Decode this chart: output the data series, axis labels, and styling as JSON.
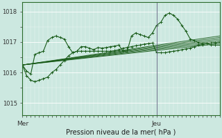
{
  "xlabel": "Pression niveau de la mer( hPa )",
  "bg_color": "#cce8e0",
  "grid_color": "#b8d8d0",
  "line_color": "#1a5c1a",
  "ylim": [
    1014.6,
    1018.3
  ],
  "xlim": [
    0,
    47
  ],
  "yticks": [
    1015,
    1016,
    1017,
    1018
  ],
  "xtick_positions": [
    0,
    32
  ],
  "xtick_labels": [
    "Mer",
    "Jeu"
  ],
  "vline_x": 32,
  "straight_lines": [
    {
      "x0": 0,
      "y0": 1016.25,
      "x1": 47,
      "y1": 1016.95
    },
    {
      "x0": 0,
      "y0": 1016.25,
      "x1": 47,
      "y1": 1017.0
    },
    {
      "x0": 0,
      "y0": 1016.25,
      "x1": 47,
      "y1": 1017.05
    },
    {
      "x0": 0,
      "y0": 1016.25,
      "x1": 47,
      "y1": 1017.1
    },
    {
      "x0": 0,
      "y0": 1016.25,
      "x1": 47,
      "y1": 1017.15
    },
    {
      "x0": 0,
      "y0": 1016.25,
      "x1": 47,
      "y1": 1017.2
    }
  ],
  "marker_line_1_x": [
    0,
    1,
    2,
    3,
    4,
    5,
    6,
    7,
    8,
    9,
    10,
    11,
    12,
    13,
    14,
    15,
    16,
    17,
    18,
    19,
    20,
    21,
    22,
    23,
    24,
    25,
    26,
    27,
    28,
    29,
    30,
    31,
    32,
    33,
    34,
    35,
    36,
    37,
    38,
    39,
    40,
    41,
    42,
    43,
    44,
    45,
    46,
    47
  ],
  "marker_line_1_y": [
    1016.25,
    1015.9,
    1015.75,
    1015.7,
    1015.75,
    1015.8,
    1015.85,
    1016.0,
    1016.1,
    1016.25,
    1016.4,
    1016.55,
    1016.65,
    1016.7,
    1016.7,
    1016.7,
    1016.7,
    1016.7,
    1016.7,
    1016.7,
    1016.7,
    1016.7,
    1016.72,
    1016.75,
    1016.8,
    1016.82,
    1016.85,
    1016.88,
    1016.9,
    1016.93,
    1016.95,
    1016.97,
    1016.65,
    1016.65,
    1016.65,
    1016.68,
    1016.7,
    1016.72,
    1016.75,
    1016.78,
    1016.8,
    1016.85,
    1016.9,
    1016.92,
    1016.95,
    1016.97,
    1016.98,
    1017.0
  ],
  "marker_line_2_x": [
    0,
    1,
    2,
    3,
    4,
    5,
    6,
    7,
    8,
    9,
    10,
    11,
    12,
    13,
    14,
    15,
    16,
    17,
    18,
    19,
    20,
    21,
    22,
    23,
    24,
    25,
    26,
    27,
    28,
    29,
    30,
    31,
    32,
    33,
    34,
    35,
    36,
    37,
    38,
    39,
    40,
    41,
    42,
    43,
    44,
    45,
    46,
    47
  ],
  "marker_line_2_y": [
    1016.25,
    1016.05,
    1015.95,
    1016.6,
    1016.65,
    1016.7,
    1017.05,
    1017.15,
    1017.2,
    1017.15,
    1017.1,
    1016.85,
    1016.65,
    1016.7,
    1016.85,
    1016.85,
    1016.8,
    1016.75,
    1016.82,
    1016.8,
    1016.82,
    1016.85,
    1016.87,
    1016.9,
    1016.7,
    1016.72,
    1017.2,
    1017.3,
    1017.25,
    1017.2,
    1017.15,
    1017.3,
    1017.55,
    1017.65,
    1017.88,
    1017.95,
    1017.88,
    1017.75,
    1017.55,
    1017.35,
    1017.1,
    1017.05,
    1016.98,
    1016.95,
    1016.95,
    1016.9,
    1016.9,
    1016.9
  ]
}
